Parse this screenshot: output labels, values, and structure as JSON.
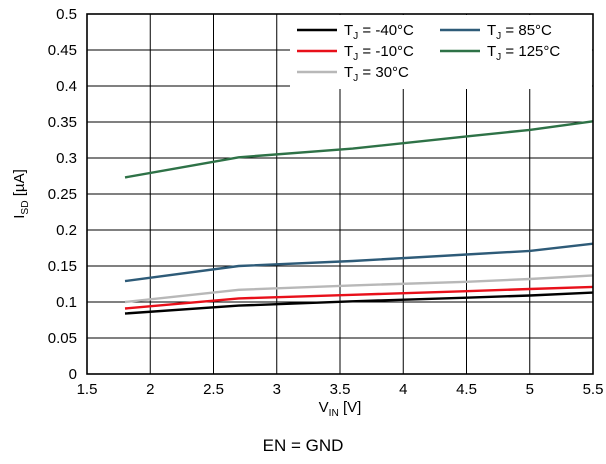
{
  "chart_data": {
    "type": "line",
    "xlabel": {
      "main": "V",
      "sub": "IN",
      "unit": " [V]"
    },
    "ylabel": {
      "main": "I",
      "sub": "SD",
      "unit": " [µA]"
    },
    "xlim": [
      1.5,
      5.5
    ],
    "ylim": [
      0,
      0.5
    ],
    "x_ticks": [
      "1.5",
      "2",
      "2.5",
      "3",
      "3.5",
      "4",
      "4.5",
      "5",
      "5.5"
    ],
    "y_ticks": [
      "0",
      "0.05",
      "0.1",
      "0.15",
      "0.2",
      "0.25",
      "0.3",
      "0.35",
      "0.4",
      "0.45",
      "0.5"
    ],
    "grid": true,
    "legend_position": "top-right",
    "x": [
      1.8,
      2.7,
      3.6,
      4.5,
      5.0,
      5.5
    ],
    "series": [
      {
        "name": "T_J = -40°C",
        "label_main": "T",
        "label_sub": "J",
        "label_rest": " = -40°C",
        "color": "#000000",
        "values": [
          0.084,
          0.095,
          0.101,
          0.106,
          0.109,
          0.113
        ]
      },
      {
        "name": "T_J = -10°C",
        "label_main": "T",
        "label_sub": "J",
        "label_rest": " = -10°C",
        "color": "#e8101a",
        "values": [
          0.091,
          0.105,
          0.11,
          0.115,
          0.118,
          0.121
        ]
      },
      {
        "name": "T_J = 30°C",
        "label_main": "T",
        "label_sub": "J",
        "label_rest": " = 30°C",
        "color": "#b8b8b8",
        "values": [
          0.1,
          0.117,
          0.123,
          0.128,
          0.132,
          0.137
        ]
      },
      {
        "name": "T_J = 85°C",
        "label_main": "T",
        "label_sub": "J",
        "label_rest": " = 85°C",
        "color": "#2e5b78",
        "values": [
          0.129,
          0.15,
          0.157,
          0.166,
          0.171,
          0.181
        ]
      },
      {
        "name": "T_J = 125°C",
        "label_main": "T",
        "label_sub": "J",
        "label_rest": " = 125°C",
        "color": "#2e7247",
        "values": [
          0.273,
          0.301,
          0.313,
          0.33,
          0.339,
          0.351
        ]
      }
    ],
    "caption": "EN = GND"
  }
}
